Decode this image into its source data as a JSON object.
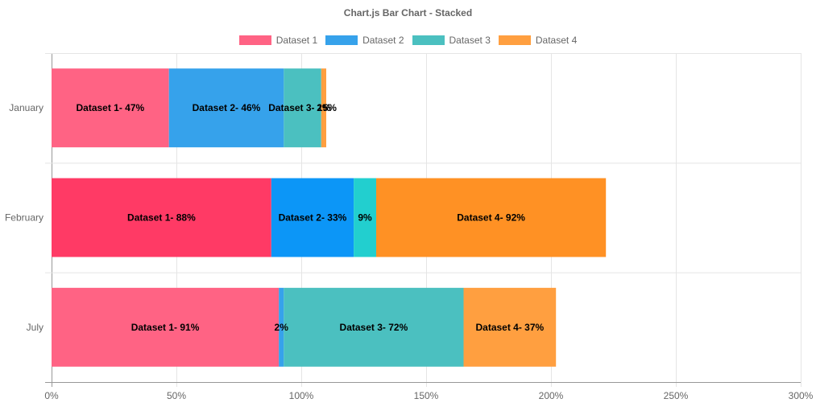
{
  "chart_data": {
    "type": "bar",
    "orientation": "horizontal",
    "stacked": true,
    "title": "Chart.js Bar Chart - Stacked",
    "categories": [
      "January",
      "February",
      "July"
    ],
    "xlim": [
      0,
      300
    ],
    "x_ticks": [
      "0%",
      "50%",
      "100%",
      "150%",
      "200%",
      "250%",
      "300%"
    ],
    "tick_values": [
      0,
      50,
      100,
      150,
      200,
      250,
      300
    ],
    "grid": true,
    "legend_position": "top",
    "series": [
      {
        "name": "Dataset 1",
        "color": "#ff6384",
        "bar_colors": [
          "#ff6384",
          "#ff3a65",
          "#ff6384"
        ],
        "values": [
          47,
          88,
          91
        ],
        "labels": [
          "Dataset 1- 47%",
          "Dataset 1- 88%",
          "Dataset 1- 91%"
        ]
      },
      {
        "name": "Dataset 2",
        "color": "#36a2eb",
        "bar_colors": [
          "#36a2eb",
          "#0c96f7",
          "#36a2eb"
        ],
        "values": [
          46,
          33,
          2
        ],
        "labels": [
          "Dataset 2- 46%",
          "Dataset 2- 33%",
          "2%"
        ]
      },
      {
        "name": "Dataset 3",
        "color": "#4bc0c0",
        "bar_colors": [
          "#4bc0c0",
          "#22cfcf",
          "#4bc0c0"
        ],
        "values": [
          15,
          9,
          72
        ],
        "labels": [
          "Dataset 3- 15%",
          "9%",
          "Dataset 3- 72%"
        ]
      },
      {
        "name": "Dataset 4",
        "color": "#ff9f40",
        "bar_colors": [
          "#ff9f40",
          "#ff9124",
          "#ff9f40"
        ],
        "values": [
          2,
          92,
          37
        ],
        "labels": [
          "2%",
          "Dataset 4- 92%",
          "Dataset 4- 37%"
        ]
      }
    ]
  }
}
